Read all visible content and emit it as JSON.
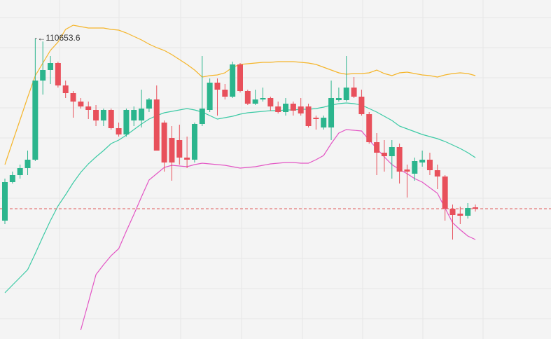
{
  "chart_data": {
    "type": "candlestick",
    "up_color": "#2bb58d",
    "down_color": "#e8505b",
    "ylim": [
      105291,
      111341
    ],
    "open": [
      107403.5,
      108091,
      108216,
      108341,
      108491,
      109903.5,
      110091,
      110216,
      109816,
      109678.5,
      109528.5,
      109441,
      109378.5,
      109191,
      109378.5,
      109053.5,
      108941,
      109191,
      109191,
      109403.5,
      109566,
      109153.5,
      108878.5,
      108841,
      108528.5,
      108491,
      109128.5,
      109378.5,
      109866,
      109741,
      109616,
      110191,
      109716,
      109491,
      109566,
      109591,
      109441,
      109341,
      109491,
      109441,
      109441,
      109241,
      109066,
      109066,
      109553.5,
      109553.5,
      109778.5,
      109616,
      109303.5,
      108803.5,
      108616,
      108553.5,
      108716,
      108316,
      108241,
      108441,
      108491,
      108303.5,
      108191,
      107616,
      107528.5,
      107491,
      107641
    ],
    "high": [
      108153.5,
      108278.5,
      108403.5,
      108653.5,
      110653.6,
      110600,
      110341,
      110241,
      109903.5,
      109716,
      109591,
      109528.5,
      109466,
      109403.5,
      109403.5,
      109153.5,
      109403.5,
      109441,
      109741,
      109591,
      109816,
      109191,
      109091,
      109116,
      108903.5,
      109153.5,
      110341,
      109941,
      109941,
      109841,
      110241,
      110216,
      109741,
      109741,
      109778.5,
      109616,
      109528.5,
      109591,
      109528.5,
      109591,
      109491,
      109278.5,
      109278.5,
      109903.5,
      109778.5,
      110341,
      109966,
      109741,
      109341,
      108966,
      108841,
      108841,
      108778.5,
      108403.5,
      108528.5,
      108653.5,
      108616,
      108403.5,
      108216,
      107691,
      107653.5,
      107716,
      107691
    ],
    "low": [
      107341,
      108066,
      108153.5,
      108216,
      108466,
      109653.5,
      109841,
      109778.5,
      109591,
      109241,
      109403.5,
      109216,
      109091,
      109091,
      109028.5,
      108903.5,
      108903.5,
      109091,
      109066,
      109341,
      108653.5,
      108278.5,
      108116,
      108403.5,
      108341,
      108441,
      109091,
      109341,
      109278.5,
      109566,
      109591,
      109691,
      109466,
      109466,
      109528.5,
      109366,
      109316,
      109278.5,
      109278.5,
      109278.5,
      109066,
      109028.5,
      109028.5,
      108841,
      109528.5,
      109528.5,
      109591,
      109278.5,
      108778.5,
      108216,
      108278.5,
      108153.5,
      108066,
      107816,
      108116,
      108366,
      108216,
      107966,
      107403.5,
      107066,
      107341,
      107441,
      107566
    ],
    "close": [
      108091,
      108216,
      108341,
      108491,
      109903.5,
      110091,
      110216,
      109816,
      109678.5,
      109528.5,
      109441,
      109378.5,
      109191,
      109378.5,
      109053.5,
      108941,
      109378.5,
      109378.5,
      109403.5,
      109566,
      108653.5,
      108441,
      108441,
      108528.5,
      108491,
      109128.5,
      109403.5,
      109866,
      109741,
      109616,
      110191,
      109716,
      109491,
      109566,
      109591,
      109441,
      109341,
      109491,
      109366,
      109316,
      109091,
      109216,
      109241,
      109591,
      109591,
      109778.5,
      109616,
      109303.5,
      108803.5,
      108616,
      108553.5,
      108716,
      108278.5,
      108278.5,
      108466,
      108491,
      108303.5,
      108191,
      107616,
      107503.5,
      107491,
      107628.5,
      107616
    ],
    "lines": [
      {
        "color": "#f5b52a",
        "values": [
          108403.5,
          108803.5,
          109203.5,
          109603.5,
          109991,
          110216,
          110441,
          110591,
          110816,
          110891,
          110866,
          110841,
          110841,
          110841,
          110816,
          110803.5,
          110753.5,
          110691,
          110628.5,
          110553.5,
          110491,
          110441,
          110366,
          110278.5,
          110191,
          110091,
          109966,
          109991,
          110003.5,
          110041,
          110141,
          110191,
          110203.5,
          110216,
          110228.5,
          110228.5,
          110241,
          110241,
          110241,
          110228.5,
          110216,
          110191,
          110141,
          110091,
          110041,
          110016,
          110028.5,
          110028.5,
          110041,
          110091,
          110028.5,
          109991,
          110041,
          110053.5,
          110028.5,
          110003.5,
          109991,
          109966,
          110003.5,
          110028.5,
          110041,
          110028.5,
          109991
        ]
      },
      {
        "color": "#3ccaa5",
        "values": [
          106116,
          106253.5,
          106391,
          106528.5,
          106816,
          107116,
          107403.5,
          107666,
          107866,
          108078.5,
          108266,
          108416,
          108541,
          108653.5,
          108778.5,
          108841,
          108928.5,
          109028.5,
          109128.5,
          109216,
          109278.5,
          109328.5,
          109353.5,
          109378.5,
          109403.5,
          109378.5,
          109341,
          109278.5,
          109216,
          109241,
          109266,
          109303.5,
          109328.5,
          109341,
          109353.5,
          109366,
          109366,
          109378.5,
          109378.5,
          109391,
          109391,
          109403.5,
          109428.5,
          109466,
          109491,
          109503.5,
          109491,
          109466,
          109403.5,
          109341,
          109266,
          109191,
          109091,
          109041,
          108991,
          108941,
          108903.5,
          108866,
          108816,
          108753.5,
          108691,
          108616,
          108528.5
        ]
      },
      {
        "color": "#e355c4",
        "values": [
          null,
          null,
          null,
          null,
          null,
          null,
          null,
          null,
          null,
          null,
          105453.5,
          105941,
          106441,
          106616,
          106778.5,
          106903.5,
          107216,
          107516,
          107828.5,
          108128.5,
          108241,
          108353.5,
          108391,
          108378.5,
          108366,
          108403.5,
          108428.5,
          108416,
          108403.5,
          108391,
          108366,
          108341,
          108353.5,
          108366,
          108391,
          108416,
          108428.5,
          108441,
          108441,
          108428.5,
          108428.5,
          108491,
          108566,
          108778.5,
          108966,
          109028.5,
          109016,
          109003.5,
          108841,
          108691,
          108541,
          108403.5,
          108316,
          108241,
          108153.5,
          108091,
          107991,
          107891,
          107628.5,
          107366,
          107241,
          107128.5,
          107066
        ]
      }
    ],
    "last_price": 107616,
    "last_price_color": "#e05a5a"
  }
}
